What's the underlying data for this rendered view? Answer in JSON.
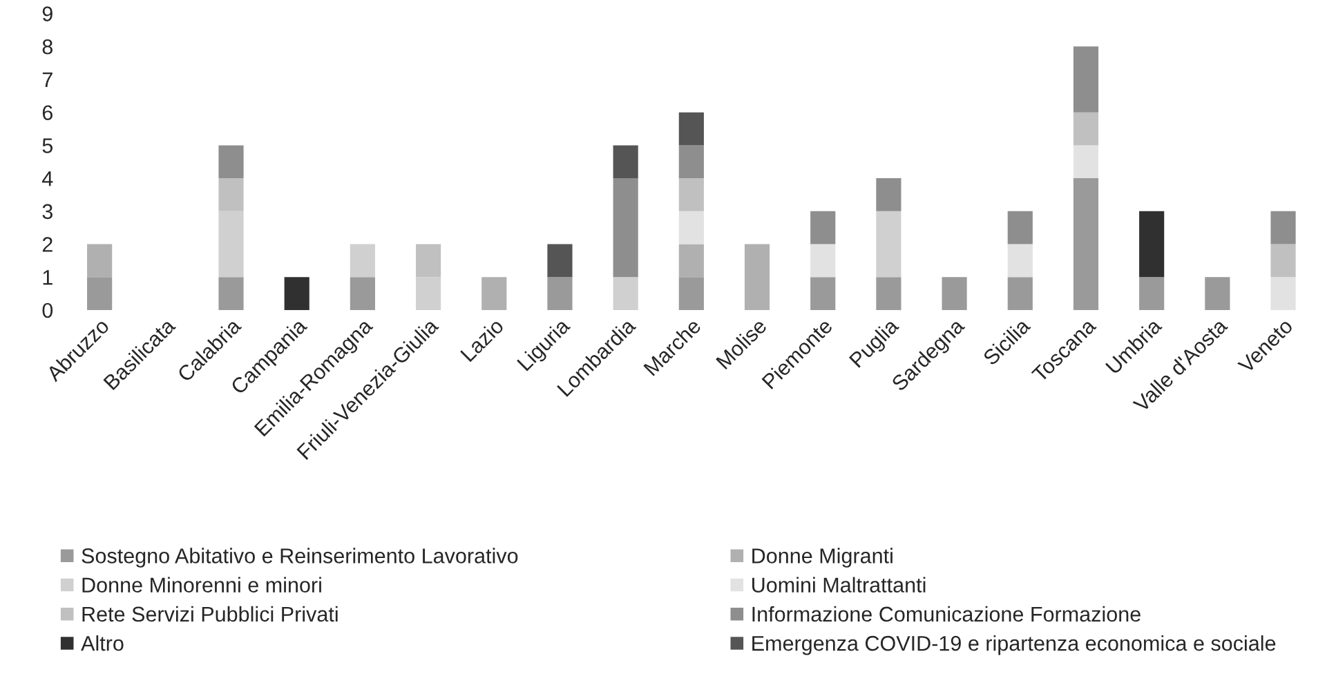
{
  "chart_data": {
    "type": "bar",
    "stacked": true,
    "categories": [
      "Abruzzo",
      "Basilicata",
      "Calabria",
      "Campania",
      "Emilia-Romagna",
      "Friuli-Venezia-Giulia",
      "Lazio",
      "Liguria",
      "Lombardia",
      "Marche",
      "Molise",
      "Piemonte",
      "Puglia",
      "Sardegna",
      "Sicilia",
      "Toscana",
      "Umbria",
      "Valle d'Aosta",
      "Veneto"
    ],
    "series": [
      {
        "name": "Sostegno Abitativo e Reinserimento Lavorativo",
        "color": "#9a9a9a",
        "values": [
          1,
          0,
          1,
          0,
          1,
          0,
          0,
          1,
          0,
          1,
          0,
          1,
          1,
          1,
          1,
          4,
          1,
          1,
          0
        ]
      },
      {
        "name": "Donne Migranti",
        "color": "#b0b0b0",
        "values": [
          1,
          0,
          0,
          0,
          0,
          0,
          1,
          0,
          0,
          1,
          2,
          0,
          0,
          0,
          0,
          0,
          0,
          0,
          0
        ]
      },
      {
        "name": "Donne Minorenni e minori",
        "color": "#d0d0d0",
        "values": [
          0,
          0,
          2,
          0,
          1,
          1,
          0,
          0,
          1,
          0,
          0,
          0,
          2,
          0,
          0,
          0,
          0,
          0,
          0
        ]
      },
      {
        "name": "Uomini Maltrattanti",
        "color": "#e2e2e2",
        "values": [
          0,
          0,
          0,
          0,
          0,
          0,
          0,
          0,
          0,
          1,
          0,
          1,
          0,
          0,
          1,
          1,
          0,
          0,
          1
        ]
      },
      {
        "name": "Rete Servizi Pubblici Privati",
        "color": "#c0c0c0",
        "values": [
          0,
          0,
          1,
          0,
          0,
          1,
          0,
          0,
          0,
          1,
          0,
          0,
          0,
          0,
          0,
          1,
          0,
          0,
          1
        ]
      },
      {
        "name": "Informazione Comunicazione Formazione",
        "color": "#8e8e8e",
        "values": [
          0,
          0,
          1,
          0,
          0,
          0,
          0,
          0,
          3,
          1,
          0,
          1,
          1,
          0,
          1,
          2,
          0,
          0,
          1
        ]
      },
      {
        "name": "Altro",
        "color": "#303030",
        "values": [
          0,
          0,
          0,
          1,
          0,
          0,
          0,
          0,
          0,
          0,
          0,
          0,
          0,
          0,
          0,
          0,
          2,
          0,
          0
        ]
      },
      {
        "name": "Emergenza COVID-19 e ripartenza economica e sociale",
        "color": "#555555",
        "values": [
          0,
          0,
          0,
          0,
          0,
          0,
          0,
          1,
          1,
          1,
          0,
          0,
          0,
          0,
          0,
          0,
          0,
          0,
          0
        ]
      }
    ],
    "ylim": [
      0,
      9
    ],
    "yticks": [
      0,
      1,
      2,
      3,
      4,
      5,
      6,
      7,
      8,
      9
    ],
    "grid": false,
    "legend": "bottom"
  }
}
